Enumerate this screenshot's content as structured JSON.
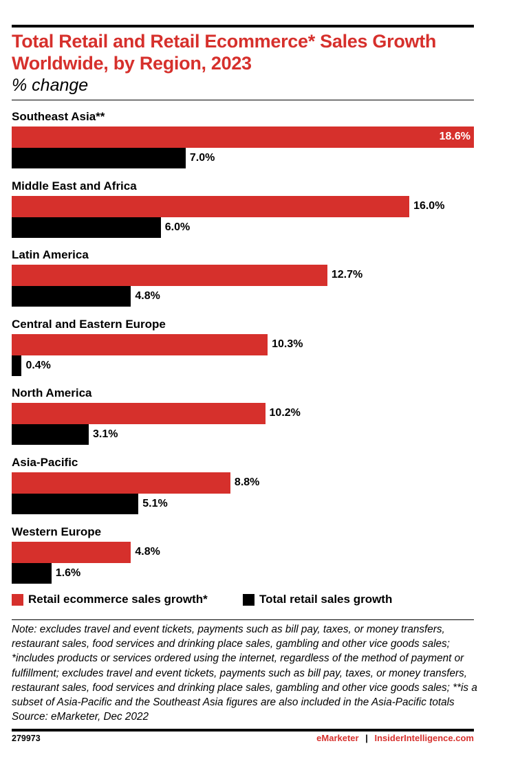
{
  "chart_data": {
    "type": "bar",
    "orientation": "horizontal",
    "title": "Total Retail and Retail Ecommerce* Sales Growth Worldwide, by Region, 2023",
    "subtitle": "% change",
    "categories": [
      "Southeast Asia**",
      "Middle East and Africa",
      "Latin America",
      "Central and Eastern Europe",
      "North America",
      "Asia-Pacific",
      "Western Europe"
    ],
    "series": [
      {
        "name": "Retail ecommerce sales growth*",
        "color": "#d6302c",
        "values": [
          18.6,
          16.0,
          12.7,
          10.3,
          10.2,
          8.8,
          4.8
        ],
        "labels": [
          "18.6%",
          "16.0%",
          "12.7%",
          "10.3%",
          "10.2%",
          "8.8%",
          "4.8%"
        ]
      },
      {
        "name": "Total retail sales growth",
        "color": "#000000",
        "values": [
          7.0,
          6.0,
          4.8,
          0.4,
          3.1,
          5.1,
          1.6
        ],
        "labels": [
          "7.0%",
          "6.0%",
          "4.8%",
          "0.4%",
          "3.1%",
          "5.1%",
          "1.6%"
        ]
      }
    ],
    "xlim": [
      0,
      18.6
    ],
    "grid": false,
    "legend_position": "bottom-left"
  },
  "note": "Note: excludes travel and event tickets, payments such as bill pay, taxes, or money transfers, restaurant sales, food services and drinking place sales, gambling and other vice goods sales; *includes products or services ordered using the internet, regardless of the method of payment or fulfillment; excludes travel and event tickets, payments such as bill pay, taxes, or money transfers, restaurant sales, food services and drinking place sales, gambling and other vice goods sales; **is a subset of Asia-Pacific and the Southeast Asia figures are also included in the Asia-Pacific totals",
  "source": "Source: eMarketer, Dec 2022",
  "footer": {
    "id": "279973",
    "brand1": "eMarketer",
    "separator": "|",
    "brand2": "InsiderIntelligence.com"
  }
}
